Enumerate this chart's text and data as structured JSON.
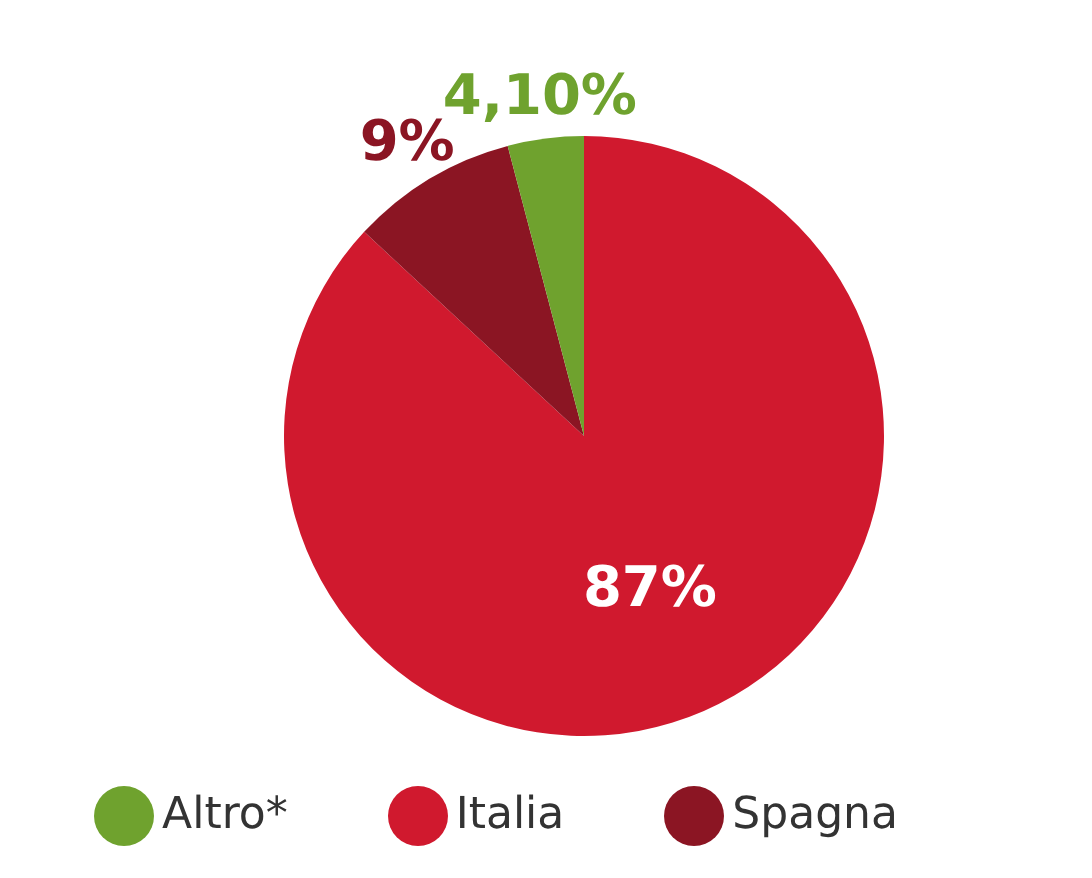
{
  "chart_data": {
    "type": "pie",
    "categories": [
      "Italia",
      "Spagna",
      "Altro*"
    ],
    "values": [
      87,
      9,
      4.1
    ],
    "colors": [
      "#d0192e",
      "#8b1523",
      "#6fa22e"
    ],
    "value_labels": [
      "87%",
      "9%",
      "4,10%"
    ],
    "legend": "bottom"
  }
}
